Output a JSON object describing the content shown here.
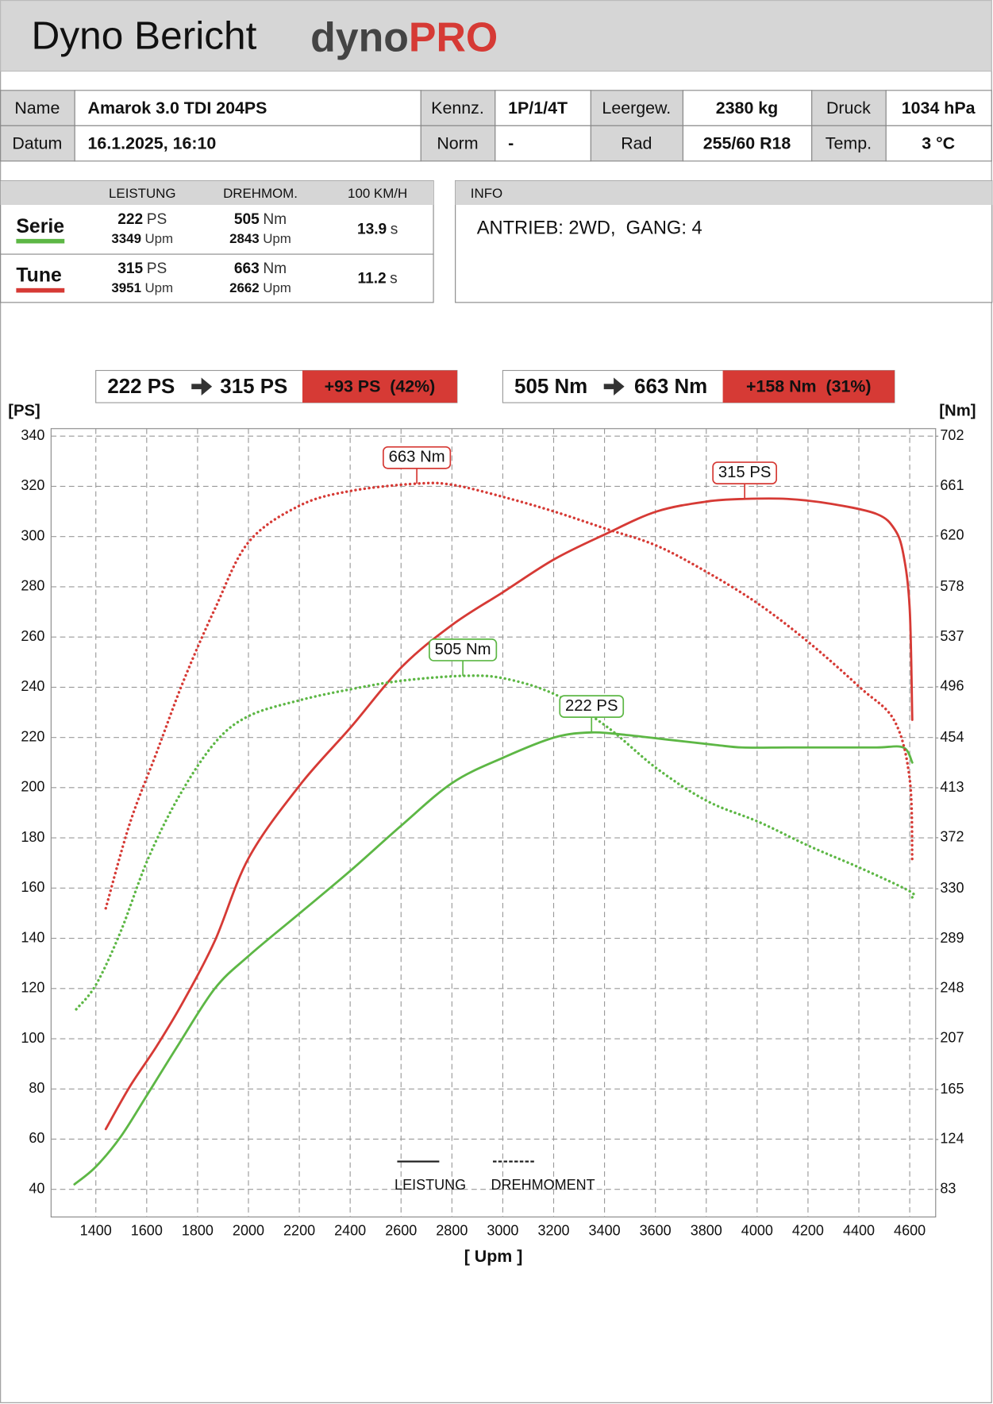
{
  "header": {
    "title": "Dyno Bericht",
    "logo_left": "dyno",
    "logo_right": "PRO"
  },
  "info_table": {
    "rows": [
      [
        "Name",
        "Amarok 3.0 TDI 204PS",
        "Kennz.",
        "1P/1/4T",
        "Leergew.",
        "2380 kg",
        "Druck",
        "1034 hPa"
      ],
      [
        "Datum",
        "16.1.2025, 16:10",
        "Norm",
        "-",
        "Rad",
        "255/60 R18",
        "Temp.",
        "3 °C"
      ]
    ]
  },
  "summary": {
    "columns": [
      "LEISTUNG",
      "DREHMOM.",
      "100 KM/H"
    ],
    "rows": [
      {
        "label": "Serie",
        "color": "#5db745",
        "power": {
          "value": 222,
          "unit": "PS"
        },
        "power_rpm": {
          "value": 3349,
          "unit": "Upm"
        },
        "torque": {
          "value": 505,
          "unit": "Nm"
        },
        "torque_rpm": {
          "value": 2843,
          "unit": "Upm"
        },
        "time": {
          "value": 13.9,
          "unit": "s"
        }
      },
      {
        "label": "Tune",
        "color": "#d63a35",
        "power": {
          "value": 315,
          "unit": "PS"
        },
        "power_rpm": {
          "value": 3951,
          "unit": "Upm"
        },
        "torque": {
          "value": 663,
          "unit": "Nm"
        },
        "torque_rpm": {
          "value": 2662,
          "unit": "Upm"
        },
        "time": {
          "value": 11.2,
          "unit": "s"
        }
      }
    ]
  },
  "info": {
    "title": "INFO",
    "text": "ANTRIEB: 2WD,  GANG: 4"
  },
  "comparisons": [
    {
      "from": "222 PS",
      "to": "315 PS",
      "delta": "+93 PS  (42%)"
    },
    {
      "from": "505 Nm",
      "to": "663 Nm",
      "delta": "+158 Nm  (31%)"
    }
  ],
  "chart_data": {
    "type": "line",
    "y_label": "[PS]",
    "y2_label": "[Nm]",
    "x_label": "[ Upm ]",
    "xlim": [
      1224,
      4702
    ],
    "xticks": [
      1400,
      1600,
      1800,
      2000,
      2200,
      2400,
      2600,
      2800,
      3000,
      3200,
      3400,
      3600,
      3800,
      4000,
      4200,
      4400,
      4600
    ],
    "ylim": [
      29,
      343
    ],
    "yticks": [
      340,
      320,
      300,
      280,
      260,
      240,
      220,
      200,
      180,
      160,
      140,
      120,
      100,
      80,
      60,
      40
    ],
    "y2lim": [
      60.3,
      708.2
    ],
    "y2ticks": [
      702,
      661,
      620,
      578,
      537,
      496,
      454,
      413,
      372,
      330,
      289,
      248,
      207,
      165,
      124,
      83
    ],
    "grid": true,
    "series": [
      {
        "color": "#5db745",
        "dash": false,
        "axis": "y",
        "x": [
          1316,
          1400,
          1498,
          1604,
          1727,
          1868,
          2001,
          2202,
          2402,
          2602,
          2803,
          3003,
          3203,
          3349,
          3485,
          3661,
          3837,
          3942,
          4118,
          4294,
          4470,
          4575,
          4610
        ],
        "values": [
          42,
          49,
          61,
          78,
          98,
          120,
          133,
          150,
          167,
          185,
          202,
          212,
          220,
          222,
          221,
          219,
          217,
          216,
          216,
          216,
          216,
          216,
          210
        ]
      },
      {
        "color": "#d63a35",
        "dash": false,
        "axis": "y",
        "x": [
          1439,
          1534,
          1639,
          1745,
          1868,
          2001,
          2202,
          2402,
          2602,
          2803,
          3003,
          3203,
          3404,
          3605,
          3805,
          3951,
          4118,
          4294,
          4470,
          4540,
          4575,
          4600,
          4610
        ],
        "values": [
          64,
          81,
          97,
          115,
          139,
          172,
          201,
          224,
          248,
          265,
          278,
          291,
          301,
          310,
          314,
          315,
          315,
          313,
          309,
          303,
          293,
          271,
          227
        ]
      },
      {
        "color": "#5db745",
        "dash": true,
        "axis": "y2",
        "x": [
          1323,
          1400,
          1498,
          1604,
          1727,
          1868,
          2001,
          2202,
          2402,
          2602,
          2843,
          3003,
          3203,
          3404,
          3605,
          3805,
          4006,
          4206,
          4407,
          4600,
          4610
        ],
        "values": [
          231,
          251,
          295,
          354,
          406,
          450,
          472,
          485,
          494,
          501,
          505,
          503,
          490,
          464,
          429,
          402,
          385,
          365,
          347,
          328,
          323
        ]
      },
      {
        "color": "#d63a35",
        "dash": true,
        "axis": "y2",
        "x": [
          1439,
          1534,
          1639,
          1745,
          1868,
          2001,
          2202,
          2402,
          2662,
          2803,
          3003,
          3203,
          3404,
          3605,
          3805,
          4006,
          4206,
          4407,
          4540,
          4600,
          4610
        ],
        "values": [
          314,
          384,
          442,
          501,
          560,
          615,
          645,
          657,
          663,
          662,
          652,
          640,
          626,
          612,
          590,
          564,
          532,
          495,
          468,
          420,
          351
        ]
      }
    ],
    "annotations": [
      {
        "text": "663 Nm",
        "x": 2662,
        "y": 663,
        "series": 3
      },
      {
        "text": "315 PS",
        "x": 3951,
        "y": 315,
        "series": 1
      },
      {
        "text": "505 Nm",
        "x": 2843,
        "y": 505,
        "series": 2
      },
      {
        "text": "222 PS",
        "x": 3349,
        "y": 222,
        "series": 0
      }
    ],
    "legend": [
      {
        "label": "LEISTUNG",
        "dash": false
      },
      {
        "label": "DREHMOMENT",
        "dash": true
      }
    ]
  }
}
